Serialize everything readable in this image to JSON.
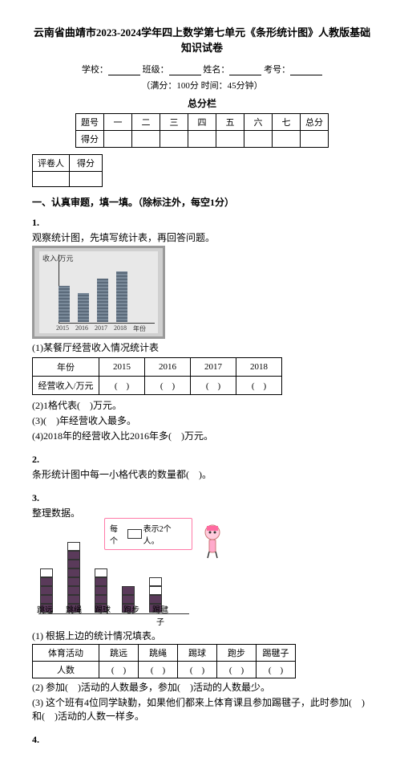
{
  "title": "云南省曲靖市2023-2024学年四上数学第七单元《条形统计图》人教版基础知识试卷",
  "info": {
    "school": "学校：",
    "class": "班级：",
    "name": "姓名：",
    "exam_no": "考号："
  },
  "sub": "（满分：100分 时间：45分钟）",
  "score_section": "总分栏",
  "score_headers": [
    "题号",
    "一",
    "二",
    "三",
    "四",
    "五",
    "六",
    "七",
    "总分"
  ],
  "score_row": "得分",
  "grader_table": {
    "col1": "评卷人",
    "col2": "得分"
  },
  "section1": "一、认真审题，填一填。（除标注外，每空1分）",
  "q1": {
    "num": "1.",
    "text": "观察统计图，先填写统计表，再回答问题。",
    "ylabel": "收入/万元",
    "chart": {
      "years": [
        "2015",
        "2016",
        "2017",
        "2018",
        "年份"
      ],
      "values": [
        50,
        40,
        60,
        70
      ]
    },
    "table_caption": "(1)某餐厅经营收入情况统计表",
    "row1": "年份",
    "row2": "经营收入/万元",
    "years": [
      "2015",
      "2016",
      "2017",
      "2018"
    ],
    "p2": "(2)1格代表(　)万元。",
    "p3": "(3)(　)年经营收入最多。",
    "p4": "(4)2018年的经营收入比2016年多(　)万元。"
  },
  "q2": {
    "num": "2.",
    "text": "条形统计图中每一小格代表的数量都(　)。"
  },
  "q3": {
    "num": "3.",
    "text": "整理数据。",
    "bubble_pre": "每个",
    "bubble_post": "表示2个人。",
    "activities": [
      "跳远",
      "跳绳",
      "踢球",
      "跑步",
      "踢毽子"
    ],
    "heights": [
      5,
      8,
      5,
      3,
      4
    ],
    "filled": [
      4,
      7,
      4,
      3,
      2
    ],
    "table_caption": "(1) 根据上边的统计情况填表。",
    "row1": "体育活动",
    "row2": "人数",
    "p2": "(2) 参加(　)活动的人数最多，参加(　)活动的人数最少。",
    "p3": "(3) 这个班有4位同学缺勤，如果他们都来上体育课且参加踢毽子，此时参加(　)和(　)活动的人数一样多。"
  },
  "q4": {
    "num": "4."
  }
}
